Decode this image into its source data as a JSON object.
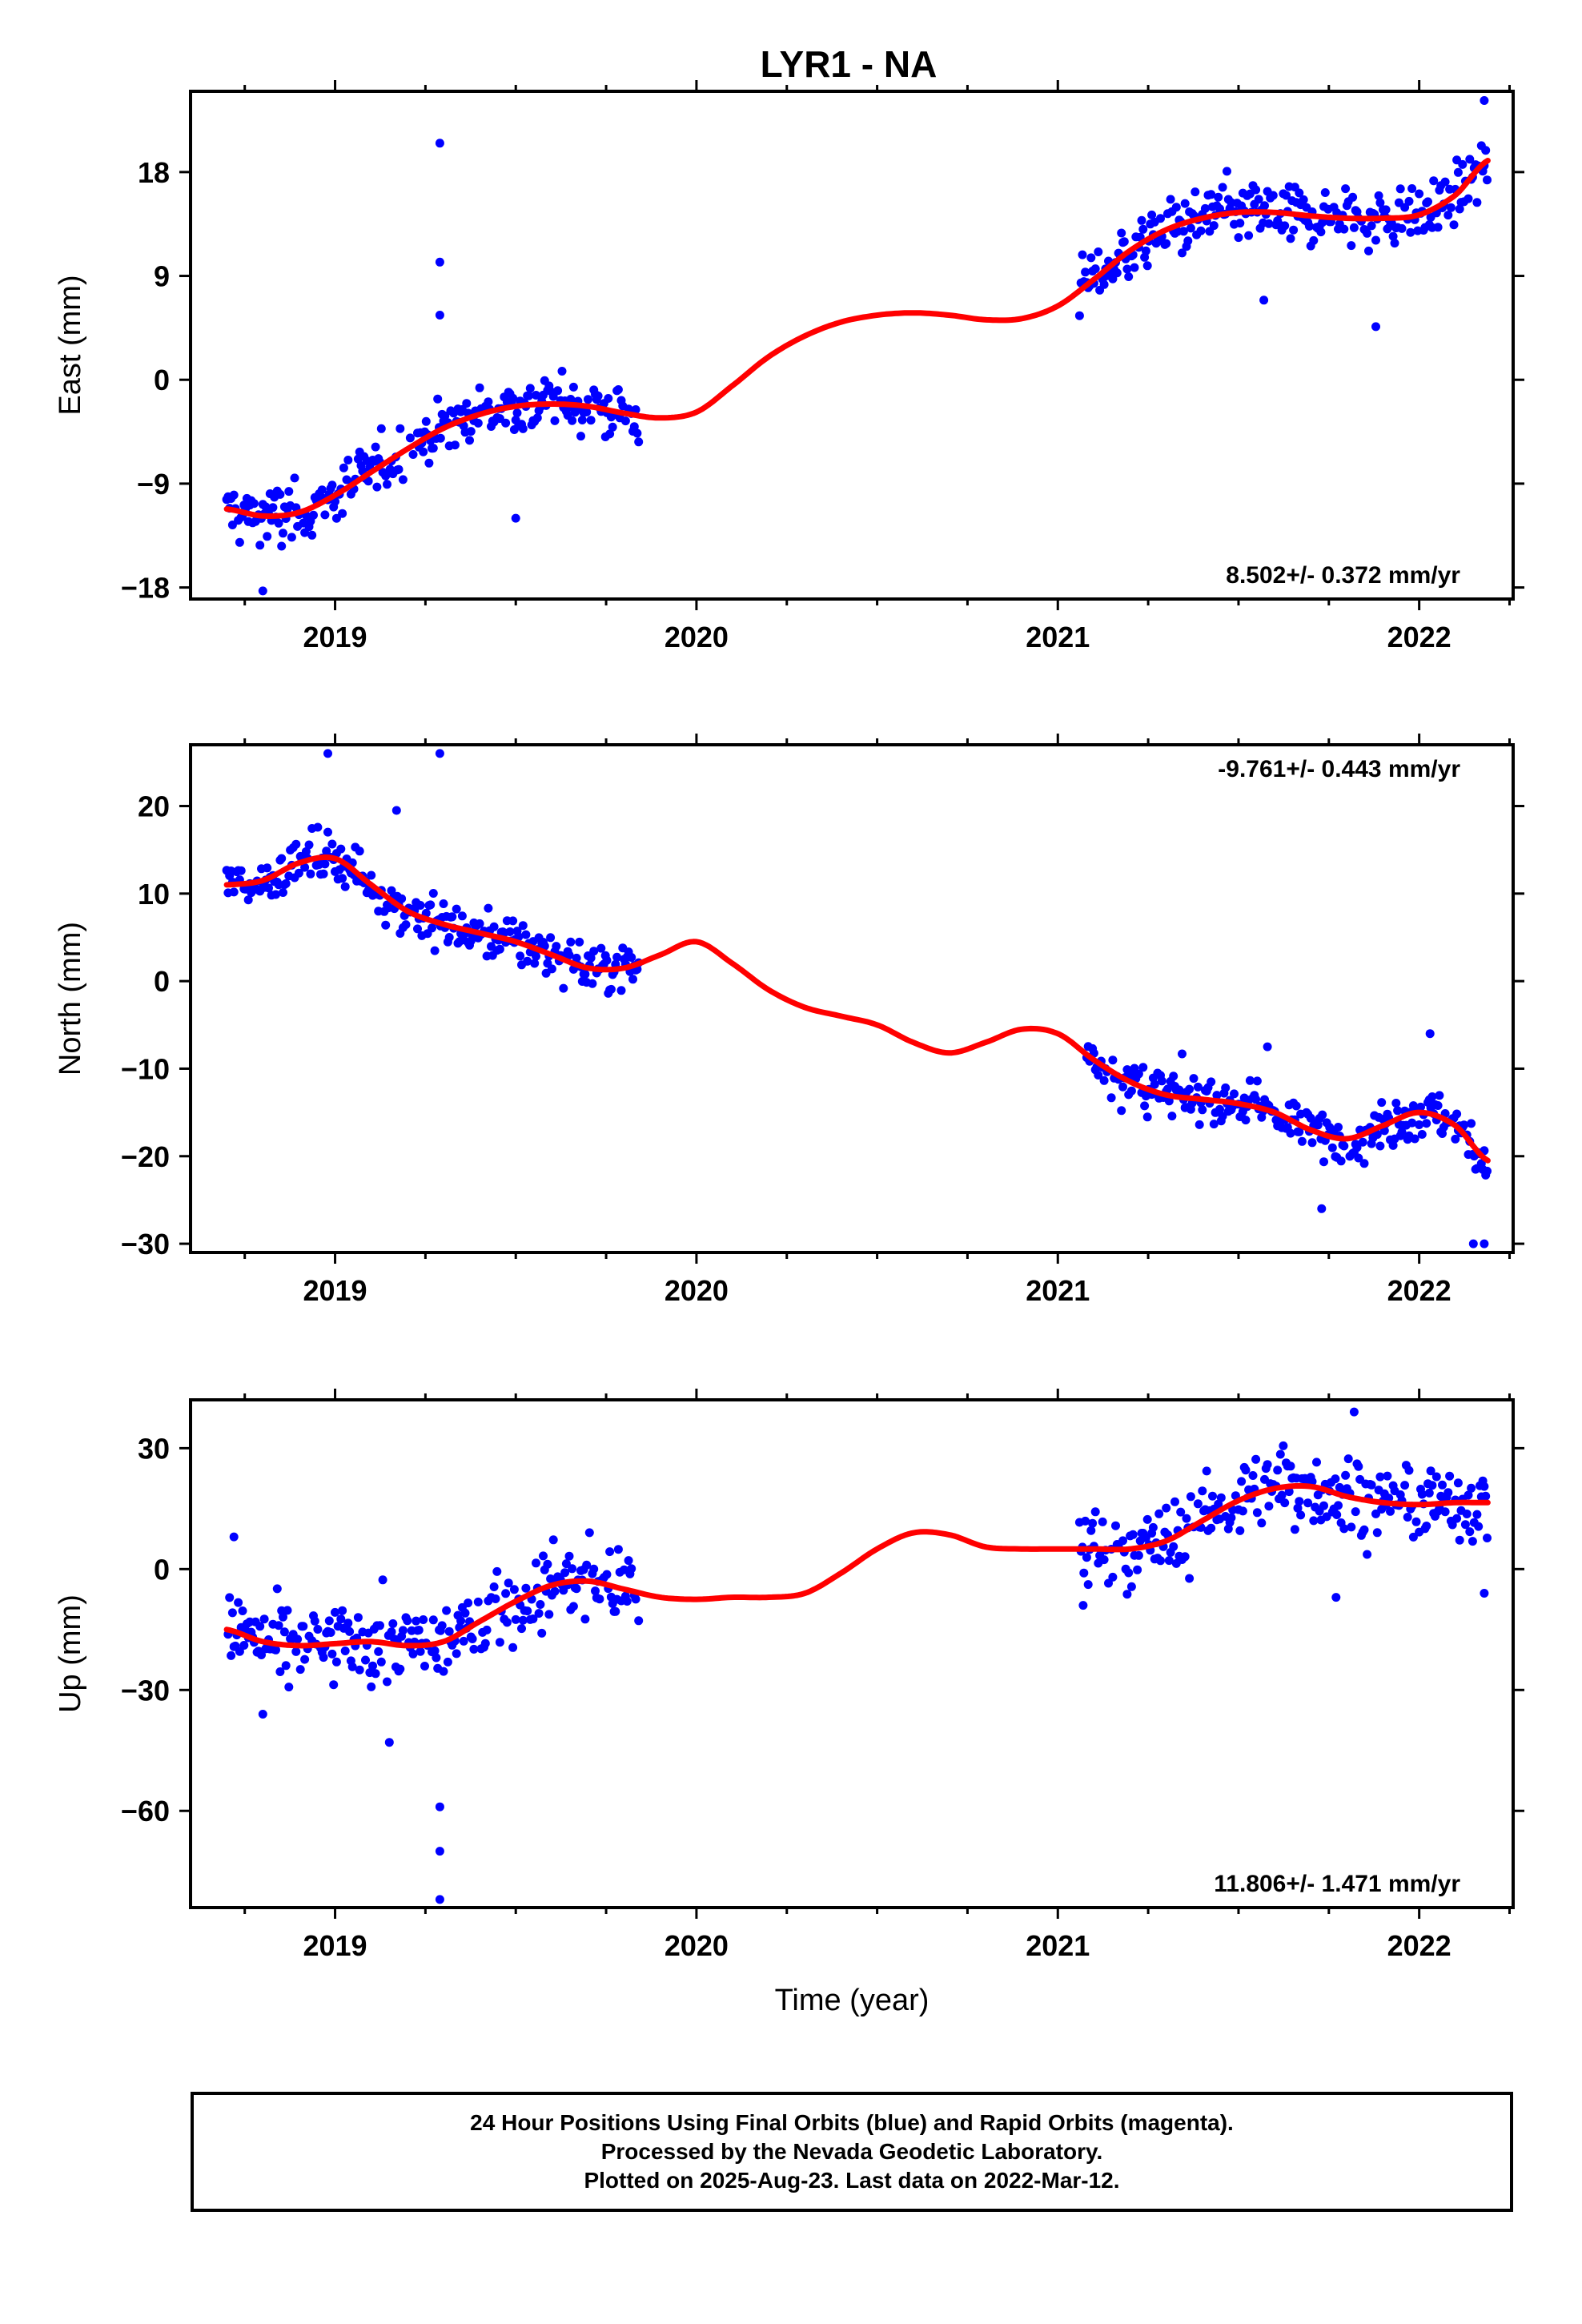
{
  "title": "LYR1 - NA",
  "colors": {
    "points": "#0000ff",
    "fit": "#ff0000",
    "axis": "#000000"
  },
  "chart_data": [
    {
      "type": "scatter",
      "ylabel": "East (mm)",
      "xlabel": "",
      "xlim": [
        2018.6,
        2022.26
      ],
      "ylim": [
        -19,
        25
      ],
      "xticks": [
        2019,
        2020,
        2021,
        2022
      ],
      "yticks": [
        -18,
        -9,
        0,
        9,
        18
      ],
      "annotation": "8.502+/- 0.372 mm/yr",
      "annotation_position": "bottom-right",
      "trend_curve": {
        "x": [
          2018.7,
          2018.8,
          2018.9,
          2019.0,
          2019.1,
          2019.2,
          2019.3,
          2019.4,
          2019.5,
          2019.6,
          2019.7,
          2019.8,
          2019.9,
          2020.0,
          2020.1,
          2020.2,
          2020.3,
          2020.4,
          2020.5,
          2020.6,
          2020.7,
          2020.8,
          2020.9,
          2021.0,
          2021.1,
          2021.2,
          2021.3,
          2021.4,
          2021.5,
          2021.6,
          2021.7,
          2021.8,
          2021.9,
          2022.0,
          2022.1,
          2022.19
        ],
        "y": [
          -11.2,
          -11.8,
          -11.5,
          -10.0,
          -8.0,
          -6.0,
          -4.2,
          -3.0,
          -2.3,
          -2.1,
          -2.3,
          -2.9,
          -3.3,
          -2.8,
          -0.5,
          2.0,
          3.8,
          5.0,
          5.6,
          5.8,
          5.6,
          5.2,
          5.3,
          6.4,
          8.7,
          11.2,
          13.0,
          14.0,
          14.5,
          14.5,
          14.2,
          14.0,
          14.0,
          14.3,
          16.0,
          19.0
        ]
      },
      "observations": {
        "segments": [
          {
            "start": 2018.7,
            "end": 2019.84,
            "step": 0.004
          },
          {
            "start": 2021.06,
            "end": 2022.19,
            "step": 0.004
          }
        ],
        "spread": 1.8,
        "outliers": [
          {
            "x": 2019.29,
            "y": 20.5
          },
          {
            "x": 2019.29,
            "y": 10.2
          },
          {
            "x": 2019.29,
            "y": 5.6
          },
          {
            "x": 2019.5,
            "y": -12.0
          },
          {
            "x": 2018.8,
            "y": -18.3
          },
          {
            "x": 2021.88,
            "y": 4.6
          },
          {
            "x": 2021.57,
            "y": 6.9
          },
          {
            "x": 2022.18,
            "y": 24.2
          }
        ]
      }
    },
    {
      "type": "scatter",
      "ylabel": "North (mm)",
      "xlabel": "",
      "xlim": [
        2018.6,
        2022.26
      ],
      "ylim": [
        -31,
        27
      ],
      "xticks": [
        2019,
        2020,
        2021,
        2022
      ],
      "yticks": [
        -30,
        -20,
        -10,
        0,
        10,
        20
      ],
      "annotation": "-9.761+/- 0.443 mm/yr",
      "annotation_position": "top-right",
      "trend_curve": {
        "x": [
          2018.7,
          2018.8,
          2018.9,
          2019.0,
          2019.1,
          2019.2,
          2019.3,
          2019.4,
          2019.5,
          2019.6,
          2019.7,
          2019.8,
          2019.9,
          2020.0,
          2020.1,
          2020.2,
          2020.3,
          2020.4,
          2020.5,
          2020.6,
          2020.7,
          2020.8,
          2020.9,
          2021.0,
          2021.1,
          2021.2,
          2021.3,
          2021.4,
          2021.5,
          2021.6,
          2021.7,
          2021.8,
          2021.9,
          2022.0,
          2022.1,
          2022.19
        ],
        "y": [
          11.0,
          11.5,
          13.5,
          14.0,
          11.0,
          8.0,
          6.5,
          5.5,
          4.5,
          3.0,
          1.5,
          1.5,
          3.0,
          4.5,
          2.0,
          -1.0,
          -3.0,
          -4.0,
          -5.0,
          -7.0,
          -8.2,
          -7.0,
          -5.5,
          -6.0,
          -9.0,
          -11.5,
          -13.0,
          -13.5,
          -14.0,
          -15.0,
          -17.0,
          -18.0,
          -16.5,
          -15.0,
          -16.5,
          -20.5
        ]
      },
      "observations": {
        "segments": [
          {
            "start": 2018.7,
            "end": 2019.84,
            "step": 0.004
          },
          {
            "start": 2021.08,
            "end": 2022.19,
            "step": 0.004
          }
        ],
        "spread": 2.0,
        "outliers": [
          {
            "x": 2018.98,
            "y": 26.0
          },
          {
            "x": 2019.29,
            "y": 26.0
          },
          {
            "x": 2019.17,
            "y": 19.5
          },
          {
            "x": 2021.58,
            "y": -7.5
          },
          {
            "x": 2021.73,
            "y": -26.0
          },
          {
            "x": 2022.15,
            "y": -30.0
          },
          {
            "x": 2022.18,
            "y": -30.0
          },
          {
            "x": 2022.03,
            "y": -6.0
          }
        ]
      }
    },
    {
      "type": "scatter",
      "ylabel": "Up (mm)",
      "xlabel": "Time (year)",
      "xlim": [
        2018.6,
        2022.26
      ],
      "ylim": [
        -84,
        42
      ],
      "xticks": [
        2019,
        2020,
        2021,
        2022
      ],
      "yticks": [
        -60,
        -30,
        0,
        30
      ],
      "annotation": "11.806+/- 1.471 mm/yr",
      "annotation_position": "bottom-right",
      "trend_curve": {
        "x": [
          2018.7,
          2018.8,
          2018.9,
          2019.0,
          2019.1,
          2019.2,
          2019.3,
          2019.4,
          2019.5,
          2019.6,
          2019.7,
          2019.8,
          2019.9,
          2020.0,
          2020.1,
          2020.2,
          2020.3,
          2020.4,
          2020.5,
          2020.6,
          2020.7,
          2020.8,
          2020.9,
          2021.0,
          2021.1,
          2021.2,
          2021.3,
          2021.4,
          2021.5,
          2021.6,
          2021.7,
          2021.8,
          2021.9,
          2022.0,
          2022.1,
          2022.19
        ],
        "y": [
          -15.0,
          -18.0,
          -19.0,
          -18.5,
          -18.0,
          -19.0,
          -18.0,
          -13.0,
          -8.0,
          -4.0,
          -3.0,
          -5.0,
          -7.0,
          -7.5,
          -7.0,
          -7.0,
          -6.0,
          -1.0,
          5.0,
          9.0,
          8.5,
          5.5,
          5.0,
          5.0,
          5.0,
          5.0,
          7.0,
          12.0,
          17.0,
          20.0,
          20.5,
          18.0,
          16.5,
          16.0,
          16.5,
          16.5
        ]
      },
      "observations": {
        "segments": [
          {
            "start": 2018.7,
            "end": 2019.84,
            "step": 0.004
          },
          {
            "start": 2021.06,
            "end": 2022.19,
            "step": 0.004
          }
        ],
        "spread": 7.0,
        "outliers": [
          {
            "x": 2019.29,
            "y": -59.0
          },
          {
            "x": 2019.29,
            "y": -70.0
          },
          {
            "x": 2019.29,
            "y": -82.0
          },
          {
            "x": 2019.15,
            "y": -43.0
          },
          {
            "x": 2018.8,
            "y": -36.0
          },
          {
            "x": 2018.72,
            "y": 8.0
          },
          {
            "x": 2021.82,
            "y": 39.0
          },
          {
            "x": 2021.77,
            "y": -7.0
          },
          {
            "x": 2022.18,
            "y": -6.0
          },
          {
            "x": 2021.07,
            "y": -9.0
          }
        ]
      }
    }
  ],
  "footer": {
    "line1": "24 Hour Positions Using Final Orbits (blue) and Rapid Orbits (magenta).",
    "line2": "Processed by the Nevada Geodetic Laboratory.",
    "line3": "Plotted on 2025-Aug-23. Last data on 2022-Mar-12."
  }
}
